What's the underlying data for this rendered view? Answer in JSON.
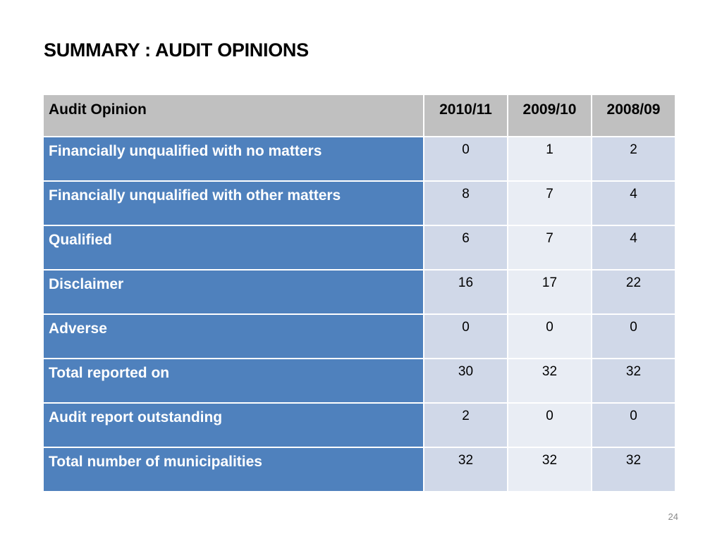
{
  "slide": {
    "title": "SUMMARY : AUDIT OPINIONS",
    "page_number": "24"
  },
  "table": {
    "headers": [
      "Audit Opinion",
      "2010/11",
      "2009/10",
      "2008/09"
    ],
    "rows": [
      {
        "label": "Financially unqualified with no matters",
        "values": [
          "0",
          "1",
          "2"
        ]
      },
      {
        "label": "Financially unqualified with other matters",
        "values": [
          "8",
          "7",
          "4"
        ]
      },
      {
        "label": "Qualified",
        "values": [
          "6",
          "7",
          "4"
        ]
      },
      {
        "label": "Disclaimer",
        "values": [
          "16",
          "17",
          "22"
        ]
      },
      {
        "label": "Adverse",
        "values": [
          "0",
          "0",
          "0"
        ]
      },
      {
        "label": "Total reported on",
        "values": [
          "30",
          "32",
          "32"
        ]
      },
      {
        "label": "Audit report outstanding",
        "values": [
          "2",
          "0",
          "0"
        ]
      },
      {
        "label": "Total number of municipalities",
        "values": [
          "32",
          "32",
          "32"
        ]
      }
    ]
  },
  "colors": {
    "header_bg": "#c0c0c0",
    "label_bg": "#4f81bd",
    "cell_band_a": "#d0d8e8",
    "cell_band_b": "#e9edf4"
  }
}
